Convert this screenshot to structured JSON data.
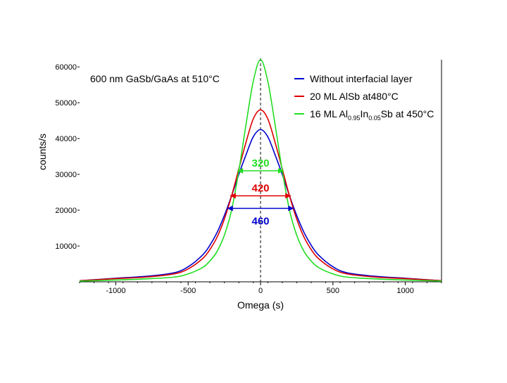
{
  "chart_data": {
    "type": "line",
    "annotation": "600 nm GaSb/GaAs at 510°C",
    "xlabel": "Omega (s)",
    "ylabel": "counts/s",
    "xlim": [
      -1250,
      1250
    ],
    "ylim": [
      0,
      62000
    ],
    "xticks": [
      -1000,
      -500,
      0,
      500,
      1000
    ],
    "yticks": [
      10000,
      20000,
      30000,
      40000,
      50000,
      60000
    ],
    "x_tick_labels": [
      "-1000",
      "-500",
      "0",
      "500",
      "1000"
    ],
    "y_tick_labels": [
      "10000",
      "20000",
      "30000",
      "40000",
      "50000",
      "60000"
    ],
    "grid": false,
    "legend_position": "top-right",
    "series": [
      {
        "name": "Without interfacial layer",
        "color": "#0000cc",
        "peak": 42500,
        "fwhm": 460,
        "x": [
          -1250,
          -1000,
          -800,
          -600,
          -500,
          -400,
          -350,
          -300,
          -250,
          -200,
          -150,
          -100,
          -50,
          0,
          50,
          100,
          150,
          200,
          250,
          300,
          350,
          400,
          500,
          600,
          800,
          1000,
          1250
        ],
        "y": [
          300,
          1000,
          1500,
          2500,
          4200,
          7500,
          10200,
          13800,
          18500,
          24000,
          30000,
          35500,
          40500,
          42500,
          40500,
          35500,
          30000,
          24000,
          18500,
          13800,
          10200,
          7500,
          4200,
          2500,
          1500,
          1000,
          300
        ]
      },
      {
        "name": "20 ML AlSb at480°C",
        "color": "#dd0000",
        "peak": 48000,
        "fwhm": 420,
        "x": [
          -1250,
          -1000,
          -800,
          -600,
          -500,
          -400,
          -350,
          -300,
          -250,
          -200,
          -150,
          -100,
          -50,
          0,
          50,
          100,
          150,
          200,
          250,
          300,
          350,
          400,
          500,
          600,
          800,
          1000,
          1250
        ],
        "y": [
          300,
          900,
          1300,
          2200,
          3600,
          6500,
          9000,
          12500,
          17500,
          24000,
          31500,
          39000,
          45500,
          48000,
          45500,
          39000,
          31500,
          24000,
          17500,
          12500,
          9000,
          6500,
          3600,
          2200,
          1300,
          900,
          300
        ]
      },
      {
        "name": "16 ML Al0.95In0.05Sb at 450°C",
        "color": "#22dd22",
        "peak": 62000,
        "fwhm": 320,
        "x": [
          -1250,
          -1000,
          -800,
          -600,
          -500,
          -400,
          -350,
          -300,
          -250,
          -200,
          -150,
          -100,
          -50,
          0,
          50,
          100,
          150,
          200,
          250,
          300,
          350,
          400,
          500,
          600,
          800,
          1000,
          1250
        ],
        "y": [
          200,
          500,
          800,
          1300,
          2200,
          4000,
          5800,
          8500,
          13000,
          20000,
          31000,
          44000,
          56000,
          62000,
          56000,
          44000,
          31000,
          20000,
          13000,
          8500,
          5800,
          4000,
          2200,
          1300,
          800,
          500,
          200
        ]
      }
    ],
    "legend": [
      {
        "text": "Without interfacial layer",
        "color": "#0000cc",
        "rich": false
      },
      {
        "text": "20 ML AlSb at480°C",
        "color": "#dd0000",
        "rich": false
      },
      {
        "text": "16 ML Al0.95In0.05Sb at 450°C",
        "color": "#22dd22",
        "rich": true,
        "parts": {
          "a": "16 ML Al",
          "b": "0.95",
          "c": "In",
          "d": "0.05",
          "e": "Sb at 450°C"
        }
      }
    ],
    "fwhm_labels": [
      {
        "text": "320",
        "color": "#22dd22",
        "halfwidth": 160,
        "y": 31000
      },
      {
        "text": "420",
        "color": "#dd0000",
        "halfwidth": 210,
        "y": 24000
      },
      {
        "text": "460",
        "color": "#0000cc",
        "halfwidth": 230,
        "y": 20500
      }
    ]
  }
}
